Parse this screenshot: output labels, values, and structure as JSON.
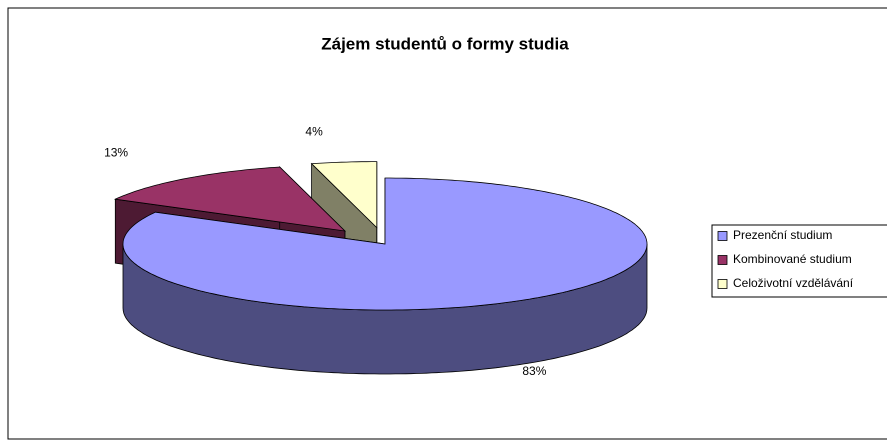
{
  "chart_data": {
    "type": "pie",
    "title": "Zájem studentů o formy studia",
    "categories": [
      "Prezenční studium",
      "Kombinované studium",
      "Celoživotní vzdělávání"
    ],
    "values": [
      83,
      13,
      4
    ],
    "value_labels": [
      "83%",
      "13%",
      "4%"
    ],
    "colors": [
      "#9999ff",
      "#993366",
      "#ffffcc"
    ],
    "legend": "right"
  }
}
